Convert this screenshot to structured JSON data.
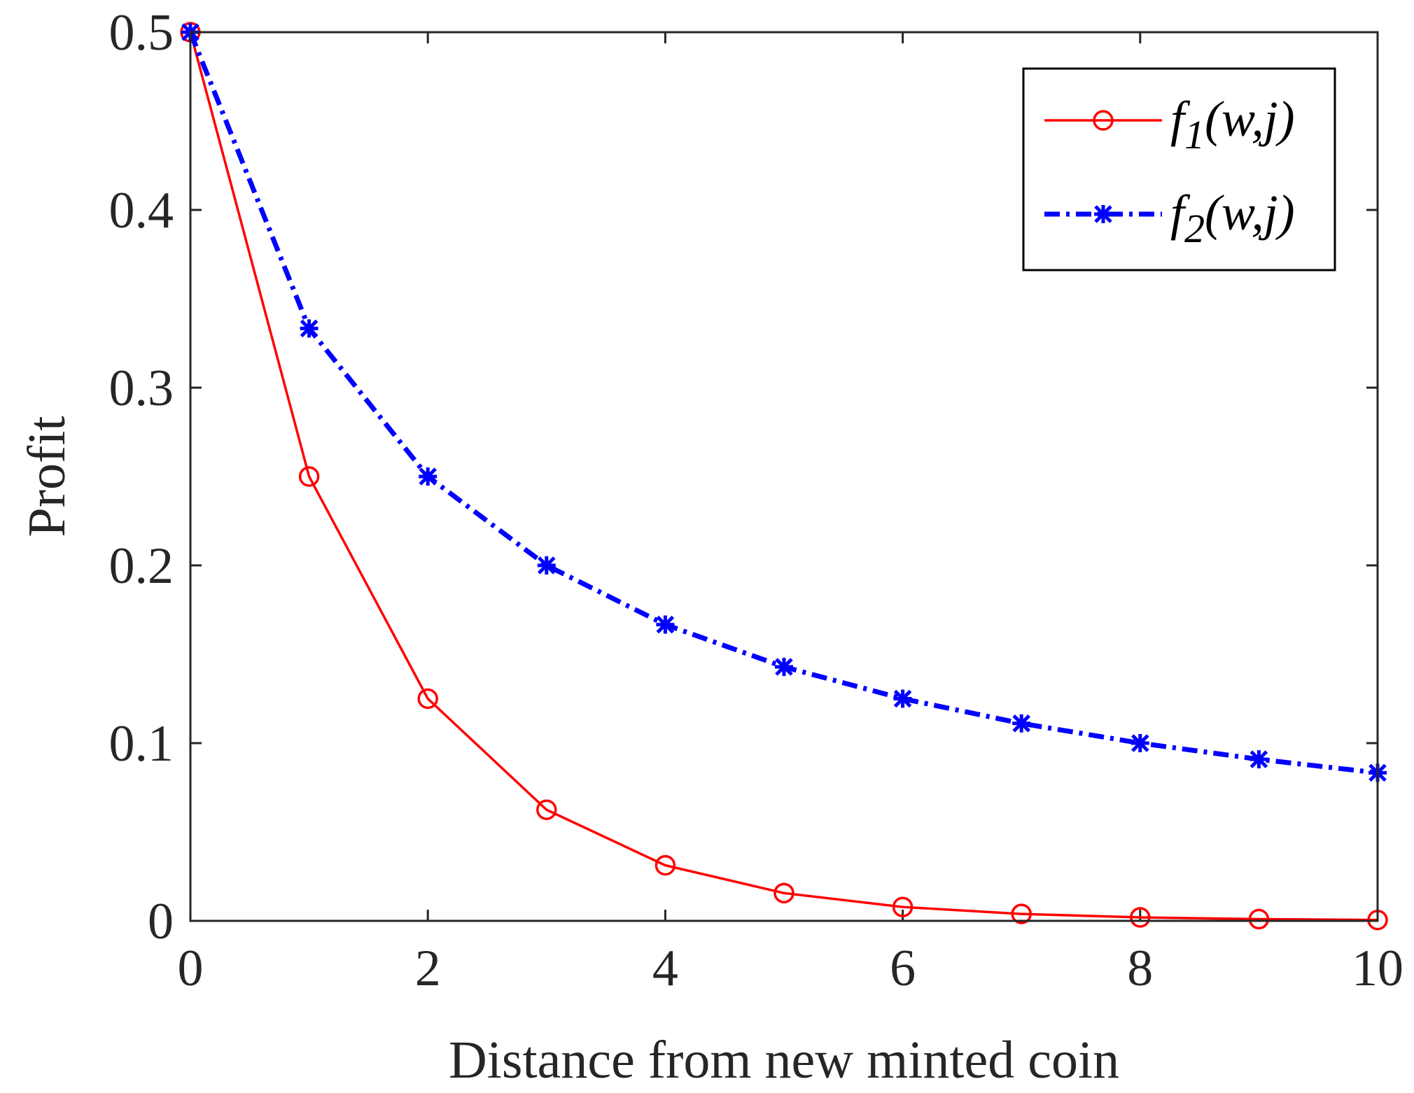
{
  "chart_data": {
    "type": "line",
    "title": "",
    "xlabel": "Distance from new minted coin",
    "ylabel": "Profit",
    "xlim": [
      0,
      10
    ],
    "ylim": [
      0,
      0.5
    ],
    "xticks": [
      0,
      2,
      4,
      6,
      8,
      10
    ],
    "xtick_labels": [
      "0",
      "2",
      "4",
      "6",
      "8",
      "10"
    ],
    "yticks": [
      0,
      0.1,
      0.2,
      0.3,
      0.4,
      0.5
    ],
    "ytick_labels": [
      "0",
      "0.1",
      "0.2",
      "0.3",
      "0.4",
      "0.5"
    ],
    "grid": false,
    "legend_position": "top-right",
    "x": [
      0,
      1,
      2,
      3,
      4,
      5,
      6,
      7,
      8,
      9,
      10
    ],
    "series": [
      {
        "name": "f1(w,j)",
        "label_base": "f",
        "label_sub": "1",
        "label_args": "(w,j)",
        "color": "#ff0000",
        "line_style": "solid",
        "marker": "circle",
        "values": [
          0.5,
          0.25,
          0.125,
          0.0625,
          0.03125,
          0.015625,
          0.0078,
          0.0039,
          0.00195,
          0.00098,
          0.00049
        ]
      },
      {
        "name": "f2(w,j)",
        "label_base": "f",
        "label_sub": "2",
        "label_args": "(w,j)",
        "color": "#0000ff",
        "line_style": "dash-dot",
        "marker": "asterisk",
        "values": [
          0.5,
          0.3333,
          0.25,
          0.2,
          0.1667,
          0.1429,
          0.125,
          0.1111,
          0.1,
          0.0909,
          0.0833
        ]
      }
    ]
  }
}
